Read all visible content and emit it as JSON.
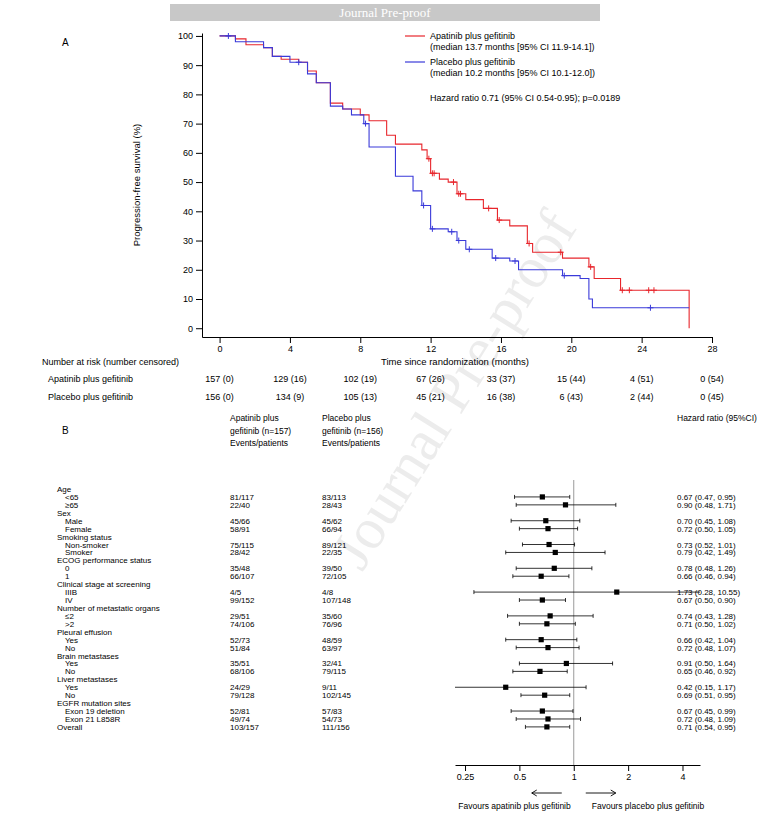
{
  "header": {
    "banner": "Journal Pre-proof",
    "watermark": "Journal Pre-proof"
  },
  "chart_data": [
    {
      "type": "line",
      "panel": "A",
      "y_label": "Progression-free survival (%)",
      "x_label": "Time since randomization (months)",
      "annotation": "Hazard ratio 0.71 (95% CI 0.54-0.95); p=0.0189",
      "xlim": [
        -1,
        28
      ],
      "xticks": [
        0,
        4,
        8,
        12,
        16,
        20,
        24,
        28
      ],
      "ylim": [
        -3,
        101
      ],
      "yticks": [
        0,
        10,
        20,
        30,
        40,
        50,
        60,
        70,
        80,
        90,
        100
      ],
      "series": [
        {
          "name": "Apatinib plus gefitinib",
          "median_label": "(median 13.7 months [95% CI 11.9-14.1])",
          "color": "#e8262c",
          "type": "line",
          "line_style": "step",
          "x": [
            0,
            0.9,
            1.5,
            2.5,
            3.0,
            3.5,
            4.5,
            5.0,
            5.5,
            6.3,
            7.0,
            8.0,
            8.5,
            9.5,
            10.0,
            11.5,
            11.8,
            12.0,
            12.5,
            13.0,
            13.5,
            14.0,
            15.0,
            15.8,
            16.5,
            17.5,
            17.8,
            19.5,
            21.0,
            21.3,
            22.8,
            26.7
          ],
          "values": [
            100,
            99,
            97,
            96,
            93,
            92,
            91,
            88,
            84,
            77,
            75,
            73,
            71,
            66,
            63,
            61,
            58,
            53,
            51,
            50,
            46,
            44,
            41,
            37,
            35,
            29,
            26,
            24,
            21,
            17,
            13,
            0
          ]
        },
        {
          "name": "Placebo plus gefitinib",
          "median_label": "(median 10.2 months [95% CI 10.1-12.0])",
          "color": "#3a3ad9",
          "type": "line",
          "line_style": "step",
          "x": [
            0,
            0.9,
            2.5,
            3.0,
            4.0,
            5.0,
            5.5,
            6.3,
            7.0,
            7.5,
            8.2,
            8.5,
            10.0,
            11.0,
            11.5,
            12.0,
            13.0,
            13.5,
            14.0,
            15.5,
            16.5,
            17.0,
            19.5,
            20.5,
            21.0,
            21.2,
            26.7
          ],
          "values": [
            100,
            98,
            96,
            93,
            91,
            87,
            84,
            76,
            75,
            73,
            70,
            62,
            52,
            47,
            42,
            34,
            33,
            30,
            27,
            24,
            23,
            20,
            18,
            17,
            10,
            7,
            7
          ]
        },
        {
          "color": "#e8262c",
          "type": "scatter",
          "marker": "plus",
          "x": [
            11.9,
            12.1,
            12.2,
            13.3,
            13.6,
            13.7,
            15.3,
            15.9,
            17.6,
            19.4,
            21.1,
            22.9,
            23.3,
            24.4,
            24.7
          ],
          "values": [
            58,
            53,
            53,
            50,
            46,
            46,
            41,
            37,
            29,
            26,
            21,
            13,
            13,
            13,
            13
          ]
        },
        {
          "color": "#3a3ad9",
          "type": "scatter",
          "marker": "plus",
          "x": [
            0.5,
            4.5,
            8.3,
            11.6,
            12.1,
            13.2,
            13.6,
            14.2,
            15.7,
            16.8,
            19.6,
            24.5
          ],
          "values": [
            100,
            91,
            70,
            42,
            34,
            33,
            30,
            27,
            24,
            23,
            18,
            7
          ]
        }
      ],
      "risk_table": {
        "title": "Number at risk (number censored)",
        "rows": [
          {
            "label": "Apatinib plus gefitinib",
            "values": [
              "157 (0)",
              "129 (16)",
              "102 (19)",
              "67 (26)",
              "33 (37)",
              "15 (44)",
              "4 (51)",
              "0 (54)"
            ]
          },
          {
            "label": "Placebo plus gefitinib",
            "values": [
              "156 (0)",
              "134 (9)",
              "105 (13)",
              "45 (21)",
              "16 (38)",
              "6 (43)",
              "2 (44)",
              "0 (45)"
            ]
          }
        ]
      }
    },
    {
      "type": "forest",
      "panel": "B",
      "log": "x",
      "xlim": [
        0.22,
        5
      ],
      "xticks": [
        0.25,
        0.5,
        1,
        2,
        4
      ],
      "reference": 1,
      "column_headers": [
        [
          "Apatinib plus",
          "gefitinib (n=157)",
          "Events/patients"
        ],
        [
          "Placebo plus",
          "gefitinib (n=156)",
          "Events/patients"
        ],
        [
          "Hazard ratio (95%CI)"
        ]
      ],
      "favours": [
        "Favours apatinib plus gefitinib",
        "Favours placebo plus gefitinib"
      ],
      "groups": [
        {
          "label": "Age",
          "rows": [
            {
              "label": "<65",
              "events_a": "81/117",
              "events_b": "83/113",
              "hr": 0.67,
              "ci": [
                0.47,
                0.95
              ],
              "hr_label": "0.67 (0.47, 0.95)"
            },
            {
              "label": "≥65",
              "events_a": "22/40",
              "events_b": "28/43",
              "hr": 0.9,
              "ci": [
                0.48,
                1.71
              ],
              "hr_label": "0.90 (0.48, 1.71)"
            }
          ]
        },
        {
          "label": "Sex",
          "rows": [
            {
              "label": "Male",
              "events_a": "45/66",
              "events_b": "45/62",
              "hr": 0.7,
              "ci": [
                0.45,
                1.08
              ],
              "hr_label": "0.70 (0.45, 1.08)"
            },
            {
              "label": "Female",
              "events_a": "58/91",
              "events_b": "66/94",
              "hr": 0.72,
              "ci": [
                0.5,
                1.05
              ],
              "hr_label": "0.72 (0.50, 1.05)"
            }
          ]
        },
        {
          "label": "Smoking status",
          "rows": [
            {
              "label": "Non-smoker",
              "events_a": "75/115",
              "events_b": "89/121",
              "hr": 0.73,
              "ci": [
                0.52,
                1.01
              ],
              "hr_label": "0.73 (0.52, 1.01)"
            },
            {
              "label": "Smoker",
              "events_a": "28/42",
              "events_b": "22/35",
              "hr": 0.79,
              "ci": [
                0.42,
                1.49
              ],
              "hr_label": "0.79 (0.42, 1.49)"
            }
          ]
        },
        {
          "label": "ECOG performance status",
          "rows": [
            {
              "label": "0",
              "events_a": "35/48",
              "events_b": "39/50",
              "hr": 0.78,
              "ci": [
                0.48,
                1.26
              ],
              "hr_label": "0.78 (0.48, 1.26)"
            },
            {
              "label": "1",
              "events_a": "66/107",
              "events_b": "72/105",
              "hr": 0.66,
              "ci": [
                0.46,
                0.94
              ],
              "hr_label": "0.66 (0.46, 0.94)"
            }
          ]
        },
        {
          "label": "Clinical stage at screening",
          "rows": [
            {
              "label": "IIIB",
              "events_a": "4/5",
              "events_b": "4/8",
              "hr": 1.73,
              "ci": [
                0.28,
                10.55
              ],
              "hr_label": "1.73 (0.28, 10.55)"
            },
            {
              "label": "IV",
              "events_a": "99/152",
              "events_b": "107/148",
              "hr": 0.67,
              "ci": [
                0.5,
                0.9
              ],
              "hr_label": "0.67 (0.50, 0.90)"
            }
          ]
        },
        {
          "label": "Number of metastatic organs",
          "rows": [
            {
              "label": "≤2",
              "events_a": "29/51",
              "events_b": "35/60",
              "hr": 0.74,
              "ci": [
                0.43,
                1.28
              ],
              "hr_label": "0.74 (0.43, 1.28)"
            },
            {
              "label": ">2",
              "events_a": "74/106",
              "events_b": "76/96",
              "hr": 0.71,
              "ci": [
                0.5,
                1.02
              ],
              "hr_label": "0.71 (0.50, 1.02)"
            }
          ]
        },
        {
          "label": "Pleural effusion",
          "rows": [
            {
              "label": "Yes",
              "events_a": "52/73",
              "events_b": "48/59",
              "hr": 0.66,
              "ci": [
                0.42,
                1.04
              ],
              "hr_label": "0.66 (0.42, 1.04)"
            },
            {
              "label": "No",
              "events_a": "51/84",
              "events_b": "63/97",
              "hr": 0.72,
              "ci": [
                0.48,
                1.07
              ],
              "hr_label": "0.72 (0.48, 1.07)"
            }
          ]
        },
        {
          "label": "Brain metastases",
          "rows": [
            {
              "label": "Yes",
              "events_a": "35/51",
              "events_b": "32/41",
              "hr": 0.91,
              "ci": [
                0.5,
                1.64
              ],
              "hr_label": "0.91 (0.50, 1.64)"
            },
            {
              "label": "No",
              "events_a": "68/106",
              "events_b": "79/115",
              "hr": 0.65,
              "ci": [
                0.46,
                0.92
              ],
              "hr_label": "0.65 (0.46, 0.92)"
            }
          ]
        },
        {
          "label": "Liver metastases",
          "rows": [
            {
              "label": "Yes",
              "events_a": "24/29",
              "events_b": "9/11",
              "hr": 0.42,
              "ci": [
                0.15,
                1.17
              ],
              "hr_label": "0.42 (0.15, 1.17)"
            },
            {
              "label": "No",
              "events_a": "79/128",
              "events_b": "102/145",
              "hr": 0.69,
              "ci": [
                0.51,
                0.95
              ],
              "hr_label": "0.69 (0.51, 0.95)"
            }
          ]
        },
        {
          "label": "EGFR mutation sites",
          "rows": [
            {
              "label": "Exon 19 deletion",
              "events_a": "52/81",
              "events_b": "57/83",
              "hr": 0.67,
              "ci": [
                0.45,
                0.99
              ],
              "hr_label": "0.67 (0.45, 0.99)"
            },
            {
              "label": "Exon 21 L858R",
              "events_a": "49/74",
              "events_b": "54/73",
              "hr": 0.72,
              "ci": [
                0.48,
                1.09
              ],
              "hr_label": "0.72 (0.48, 1.09)"
            }
          ]
        }
      ],
      "overall": {
        "label": "Overall",
        "events_a": "103/157",
        "events_b": "111/156",
        "hr": 0.71,
        "ci": [
          0.54,
          0.95
        ],
        "hr_label": "0.71 (0.54, 0.95)"
      }
    }
  ]
}
